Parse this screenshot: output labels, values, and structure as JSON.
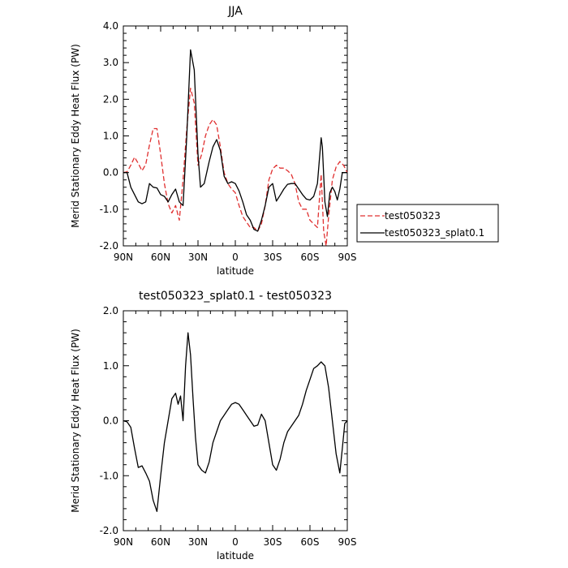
{
  "chart_data": [
    {
      "type": "line",
      "title": "JJA",
      "xlabel": "latitude",
      "ylabel": "Merid Stationary Eddy Heat Flux (PW)",
      "xlim": [
        90,
        -90
      ],
      "ylim": [
        -2.0,
        4.0
      ],
      "x_ticks": [
        {
          "value": 90,
          "label": "90N"
        },
        {
          "value": 60,
          "label": "60N"
        },
        {
          "value": 30,
          "label": "30N"
        },
        {
          "value": 0,
          "label": "0"
        },
        {
          "value": -30,
          "label": "30S"
        },
        {
          "value": -60,
          "label": "60S"
        },
        {
          "value": -90,
          "label": "90S"
        }
      ],
      "y_ticks": [
        {
          "value": -2.0,
          "label": "-2.0"
        },
        {
          "value": -1.0,
          "label": "-1.0"
        },
        {
          "value": 0.0,
          "label": "0.0"
        },
        {
          "value": 1.0,
          "label": "1.0"
        },
        {
          "value": 2.0,
          "label": "2.0"
        },
        {
          "value": 3.0,
          "label": "3.0"
        },
        {
          "value": 4.0,
          "label": "4.0"
        }
      ],
      "legend_position": "right",
      "series": [
        {
          "name": "test050323",
          "color": "#e03030",
          "dash": "dashed",
          "points": [
            [
              90,
              0.0
            ],
            [
              87,
              0.02
            ],
            [
              84,
              0.2
            ],
            [
              81,
              0.42
            ],
            [
              78,
              0.25
            ],
            [
              75,
              0.05
            ],
            [
              72,
              0.22
            ],
            [
              69,
              0.75
            ],
            [
              66,
              1.2
            ],
            [
              63,
              1.2
            ],
            [
              60,
              0.5
            ],
            [
              57,
              -0.3
            ],
            [
              54,
              -0.85
            ],
            [
              51,
              -1.1
            ],
            [
              48,
              -0.9
            ],
            [
              45,
              -1.3
            ],
            [
              42,
              -0.2
            ],
            [
              39,
              1.2
            ],
            [
              36,
              2.3
            ],
            [
              33,
              1.9
            ],
            [
              30,
              0.2
            ],
            [
              27,
              0.5
            ],
            [
              24,
              1.0
            ],
            [
              21,
              1.3
            ],
            [
              18,
              1.45
            ],
            [
              15,
              1.3
            ],
            [
              12,
              0.7
            ],
            [
              9,
              0.0
            ],
            [
              6,
              -0.3
            ],
            [
              3,
              -0.45
            ],
            [
              0,
              -0.55
            ],
            [
              -3,
              -0.9
            ],
            [
              -6,
              -1.2
            ],
            [
              -9,
              -1.35
            ],
            [
              -12,
              -1.5
            ],
            [
              -15,
              -1.5
            ],
            [
              -18,
              -1.6
            ],
            [
              -21,
              -1.4
            ],
            [
              -24,
              -0.9
            ],
            [
              -27,
              -0.2
            ],
            [
              -30,
              0.1
            ],
            [
              -33,
              0.2
            ],
            [
              -36,
              0.12
            ],
            [
              -39,
              0.12
            ],
            [
              -42,
              0.05
            ],
            [
              -45,
              -0.05
            ],
            [
              -48,
              -0.3
            ],
            [
              -51,
              -0.8
            ],
            [
              -54,
              -1.0
            ],
            [
              -57,
              -1.0
            ],
            [
              -60,
              -1.3
            ],
            [
              -63,
              -1.4
            ],
            [
              -66,
              -1.5
            ],
            [
              -69,
              -0.05
            ],
            [
              -71,
              -1.6
            ],
            [
              -73,
              -2.0
            ],
            [
              -75,
              -1.2
            ],
            [
              -78,
              -0.2
            ],
            [
              -81,
              0.15
            ],
            [
              -84,
              0.3
            ],
            [
              -87,
              0.2
            ],
            [
              -90,
              0.0
            ]
          ]
        },
        {
          "name": "test050323_splat0.1",
          "color": "#000000",
          "dash": "solid",
          "points": [
            [
              90,
              0.0
            ],
            [
              87,
              0.0
            ],
            [
              84,
              -0.4
            ],
            [
              81,
              -0.6
            ],
            [
              78,
              -0.8
            ],
            [
              75,
              -0.85
            ],
            [
              72,
              -0.8
            ],
            [
              69,
              -0.3
            ],
            [
              66,
              -0.4
            ],
            [
              63,
              -0.42
            ],
            [
              60,
              -0.6
            ],
            [
              57,
              -0.65
            ],
            [
              54,
              -0.8
            ],
            [
              51,
              -0.6
            ],
            [
              48,
              -0.45
            ],
            [
              45,
              -0.8
            ],
            [
              42,
              -0.9
            ],
            [
              39,
              1.0
            ],
            [
              36,
              3.35
            ],
            [
              33,
              2.8
            ],
            [
              30,
              0.5
            ],
            [
              28,
              -0.4
            ],
            [
              25,
              -0.3
            ],
            [
              21,
              0.3
            ],
            [
              18,
              0.7
            ],
            [
              15,
              0.9
            ],
            [
              12,
              0.6
            ],
            [
              9,
              -0.1
            ],
            [
              6,
              -0.3
            ],
            [
              3,
              -0.25
            ],
            [
              0,
              -0.3
            ],
            [
              -3,
              -0.5
            ],
            [
              -6,
              -0.8
            ],
            [
              -9,
              -1.15
            ],
            [
              -12,
              -1.3
            ],
            [
              -15,
              -1.55
            ],
            [
              -18,
              -1.6
            ],
            [
              -21,
              -1.3
            ],
            [
              -24,
              -0.9
            ],
            [
              -27,
              -0.4
            ],
            [
              -30,
              -0.3
            ],
            [
              -33,
              -0.78
            ],
            [
              -36,
              -0.62
            ],
            [
              -39,
              -0.45
            ],
            [
              -42,
              -0.32
            ],
            [
              -45,
              -0.3
            ],
            [
              -48,
              -0.3
            ],
            [
              -51,
              -0.45
            ],
            [
              -54,
              -0.6
            ],
            [
              -57,
              -0.72
            ],
            [
              -60,
              -0.75
            ],
            [
              -63,
              -0.65
            ],
            [
              -66,
              -0.3
            ],
            [
              -69,
              0.95
            ],
            [
              -70,
              0.7
            ],
            [
              -72,
              -0.8
            ],
            [
              -74,
              -1.2
            ],
            [
              -76,
              -0.55
            ],
            [
              -78,
              -0.4
            ],
            [
              -80,
              -0.52
            ],
            [
              -82,
              -0.75
            ],
            [
              -84,
              -0.45
            ],
            [
              -86,
              0.0
            ],
            [
              -90,
              0.0
            ]
          ]
        }
      ]
    },
    {
      "type": "line",
      "title": "test050323_splat0.1 - test050323",
      "xlabel": "latitude",
      "ylabel": "Merid Stationary Eddy Heat Flux (PW)",
      "xlim": [
        90,
        -90
      ],
      "ylim": [
        -2.0,
        2.0
      ],
      "x_ticks": [
        {
          "value": 90,
          "label": "90N"
        },
        {
          "value": 60,
          "label": "60N"
        },
        {
          "value": 30,
          "label": "30N"
        },
        {
          "value": 0,
          "label": "0"
        },
        {
          "value": -30,
          "label": "30S"
        },
        {
          "value": -60,
          "label": "60S"
        },
        {
          "value": -90,
          "label": "90S"
        }
      ],
      "y_ticks": [
        {
          "value": -2.0,
          "label": "-2.0"
        },
        {
          "value": -1.0,
          "label": "-1.0"
        },
        {
          "value": 0.0,
          "label": "0.0"
        },
        {
          "value": 1.0,
          "label": "1.0"
        },
        {
          "value": 2.0,
          "label": "2.0"
        }
      ],
      "series": [
        {
          "color": "#000000",
          "dash": "solid",
          "points": [
            [
              90,
              0.0
            ],
            [
              87,
              -0.02
            ],
            [
              84,
              -0.12
            ],
            [
              81,
              -0.5
            ],
            [
              78,
              -0.85
            ],
            [
              75,
              -0.82
            ],
            [
              72,
              -0.95
            ],
            [
              69,
              -1.1
            ],
            [
              66,
              -1.45
            ],
            [
              63,
              -1.65
            ],
            [
              60,
              -1.0
            ],
            [
              57,
              -0.4
            ],
            [
              54,
              0.0
            ],
            [
              51,
              0.4
            ],
            [
              48,
              0.5
            ],
            [
              46,
              0.3
            ],
            [
              44,
              0.45
            ],
            [
              42,
              0.0
            ],
            [
              40,
              1.0
            ],
            [
              38,
              1.6
            ],
            [
              36,
              1.2
            ],
            [
              34,
              0.4
            ],
            [
              32,
              -0.3
            ],
            [
              30,
              -0.8
            ],
            [
              27,
              -0.9
            ],
            [
              24,
              -0.95
            ],
            [
              21,
              -0.75
            ],
            [
              18,
              -0.4
            ],
            [
              15,
              -0.2
            ],
            [
              12,
              0.0
            ],
            [
              9,
              0.1
            ],
            [
              6,
              0.2
            ],
            [
              3,
              0.3
            ],
            [
              0,
              0.33
            ],
            [
              -3,
              0.3
            ],
            [
              -6,
              0.2
            ],
            [
              -9,
              0.1
            ],
            [
              -12,
              0.0
            ],
            [
              -15,
              -0.1
            ],
            [
              -18,
              -0.08
            ],
            [
              -21,
              0.12
            ],
            [
              -24,
              0.0
            ],
            [
              -27,
              -0.4
            ],
            [
              -30,
              -0.8
            ],
            [
              -33,
              -0.9
            ],
            [
              -36,
              -0.7
            ],
            [
              -39,
              -0.4
            ],
            [
              -42,
              -0.2
            ],
            [
              -45,
              -0.1
            ],
            [
              -48,
              0.0
            ],
            [
              -51,
              0.1
            ],
            [
              -54,
              0.3
            ],
            [
              -57,
              0.55
            ],
            [
              -60,
              0.75
            ],
            [
              -63,
              0.95
            ],
            [
              -66,
              1.0
            ],
            [
              -69,
              1.07
            ],
            [
              -72,
              1.0
            ],
            [
              -75,
              0.6
            ],
            [
              -78,
              0.0
            ],
            [
              -81,
              -0.6
            ],
            [
              -84,
              -0.95
            ],
            [
              -86,
              -0.5
            ],
            [
              -88,
              -0.05
            ],
            [
              -90,
              0.0
            ]
          ]
        }
      ]
    }
  ]
}
